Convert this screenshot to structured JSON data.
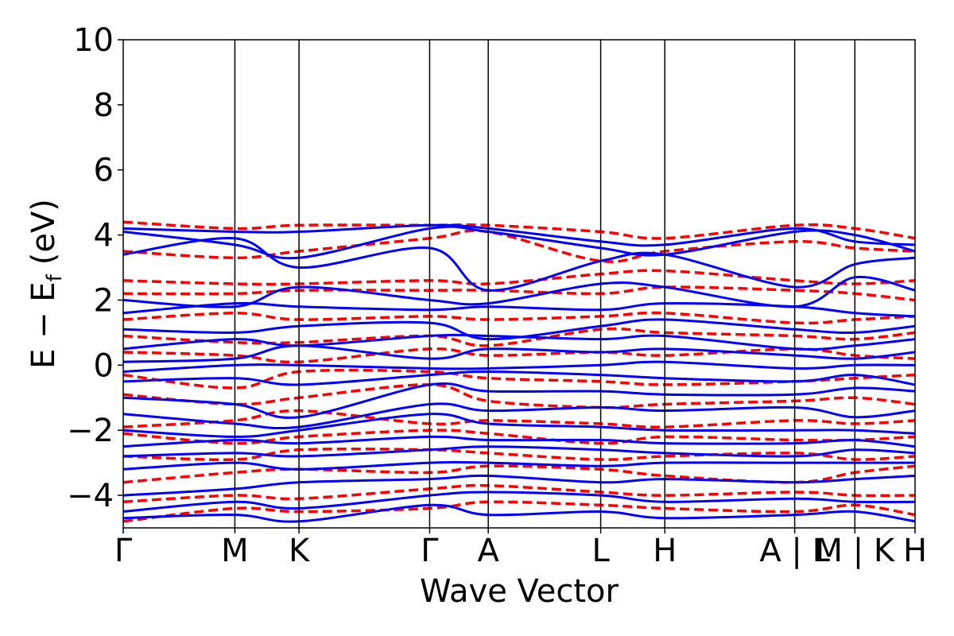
{
  "chart_data": {
    "type": "line",
    "title": "",
    "xlabel": "Wave Vector",
    "ylabel": "E − E",
    "ylabel_sub": "f",
    "ylabel_unit": "(eV)",
    "ylim": [
      -5,
      10
    ],
    "yticks": [
      {
        "value": -4,
        "label": "−4"
      },
      {
        "value": -2,
        "label": "−2"
      },
      {
        "value": 0,
        "label": "0"
      },
      {
        "value": 2,
        "label": "2"
      },
      {
        "value": 4,
        "label": "4"
      },
      {
        "value": 6,
        "label": "6"
      },
      {
        "value": 8,
        "label": "8"
      },
      {
        "value": 10,
        "label": "10"
      }
    ],
    "xlim": [
      0,
      10
    ],
    "kpath": [
      {
        "x": 0.0,
        "label": "Γ"
      },
      {
        "x": 1.41,
        "label": "M"
      },
      {
        "x": 2.22,
        "label": "K"
      },
      {
        "x": 3.87,
        "label": "Γ"
      },
      {
        "x": 4.61,
        "label": "A"
      },
      {
        "x": 6.03,
        "label": "L"
      },
      {
        "x": 6.84,
        "label": "H"
      },
      {
        "x": 8.48,
        "label": "A | L"
      },
      {
        "x": 9.24,
        "label": "M | K"
      },
      {
        "x": 10.0,
        "label": "H"
      }
    ],
    "grid": false,
    "legend": "none",
    "series": [
      {
        "style": "solid",
        "color": "#0000ff"
      },
      {
        "style": "dashed",
        "color": "#ff0000"
      }
    ],
    "bands_sampled": {
      "x": [
        0,
        1.41,
        2.22,
        3.87,
        4.61,
        6.03,
        6.84,
        8.48,
        9.24,
        10.0
      ],
      "blue": [
        [
          4.2,
          4.1,
          4.1,
          4.3,
          4.2,
          3.8,
          3.7,
          4.2,
          3.8,
          3.7
        ],
        [
          4.1,
          3.7,
          3.3,
          4.2,
          4.1,
          3.6,
          3.4,
          4.1,
          4.0,
          3.5
        ],
        [
          3.4,
          3.9,
          3.0,
          3.6,
          2.3,
          3.2,
          3.4,
          2.4,
          3.1,
          3.3
        ],
        [
          2.0,
          1.8,
          2.4,
          2.0,
          1.9,
          2.5,
          2.4,
          1.8,
          2.7,
          2.3
        ],
        [
          1.6,
          1.9,
          1.8,
          1.7,
          1.8,
          1.7,
          1.9,
          1.8,
          1.6,
          1.5
        ],
        [
          1.1,
          1.0,
          1.2,
          1.3,
          0.8,
          1.2,
          1.4,
          1.1,
          1.0,
          1.2
        ],
        [
          0.5,
          0.8,
          0.6,
          0.9,
          0.9,
          0.8,
          0.9,
          0.5,
          0.6,
          0.8
        ],
        [
          0.1,
          0.2,
          0.6,
          0.2,
          0.5,
          0.4,
          0.5,
          0.3,
          0.2,
          0.4
        ],
        [
          -0.2,
          0.0,
          0.0,
          -0.1,
          -0.1,
          0.0,
          0.1,
          -0.1,
          0.0,
          0.0
        ],
        [
          -0.5,
          -0.4,
          -0.6,
          -0.3,
          -0.2,
          -0.3,
          -0.4,
          -0.5,
          -0.3,
          -0.6
        ],
        [
          -1.0,
          -1.2,
          -1.6,
          -0.6,
          -0.8,
          -0.8,
          -0.9,
          -0.9,
          -0.7,
          -0.8
        ],
        [
          -1.5,
          -1.8,
          -1.9,
          -1.2,
          -1.4,
          -1.3,
          -1.4,
          -1.3,
          -1.6,
          -1.4
        ],
        [
          -2.0,
          -2.2,
          -2.0,
          -1.5,
          -1.8,
          -1.9,
          -2.0,
          -2.0,
          -2.0,
          -2.1
        ],
        [
          -2.5,
          -2.3,
          -2.4,
          -2.2,
          -2.3,
          -2.3,
          -2.4,
          -2.4,
          -2.3,
          -2.5
        ],
        [
          -2.8,
          -2.7,
          -2.8,
          -2.6,
          -2.5,
          -2.6,
          -2.7,
          -2.8,
          -2.6,
          -2.7
        ],
        [
          -3.2,
          -3.0,
          -3.2,
          -3.0,
          -3.0,
          -3.1,
          -3.0,
          -3.0,
          -3.0,
          -3.0
        ],
        [
          -4.0,
          -3.8,
          -3.6,
          -3.5,
          -3.4,
          -3.6,
          -3.5,
          -3.6,
          -3.5,
          -3.4
        ],
        [
          -4.5,
          -4.2,
          -4.4,
          -4.0,
          -3.9,
          -4.0,
          -4.2,
          -4.1,
          -4.2,
          -4.2
        ],
        [
          -4.7,
          -4.6,
          -4.8,
          -4.3,
          -4.6,
          -4.5,
          -4.7,
          -4.6,
          -4.5,
          -4.8
        ]
      ],
      "red": [
        [
          4.4,
          4.2,
          4.3,
          4.3,
          4.3,
          4.1,
          3.9,
          4.3,
          4.2,
          3.9
        ],
        [
          3.5,
          3.3,
          3.5,
          3.9,
          4.1,
          3.2,
          3.5,
          3.8,
          3.6,
          3.5
        ],
        [
          2.6,
          2.5,
          2.5,
          2.6,
          2.5,
          2.8,
          2.9,
          2.6,
          2.5,
          2.6
        ],
        [
          2.2,
          2.2,
          2.3,
          2.3,
          2.3,
          2.2,
          2.4,
          2.3,
          2.2,
          2.0
        ],
        [
          1.4,
          1.6,
          1.4,
          1.5,
          1.4,
          1.5,
          1.6,
          1.3,
          1.4,
          1.5
        ],
        [
          0.9,
          0.7,
          0.7,
          0.9,
          0.6,
          1.1,
          1.0,
          0.9,
          0.8,
          1.0
        ],
        [
          0.4,
          0.3,
          0.1,
          0.5,
          0.3,
          0.4,
          0.3,
          0.5,
          0.3,
          0.2
        ],
        [
          -0.3,
          -0.7,
          -0.2,
          -0.2,
          -0.4,
          -0.5,
          -0.6,
          -0.5,
          -0.4,
          -0.3
        ],
        [
          -0.9,
          -1.2,
          -1.0,
          -0.6,
          -1.1,
          -1.3,
          -1.2,
          -1.1,
          -1.0,
          -1.2
        ],
        [
          -1.9,
          -1.7,
          -1.4,
          -1.8,
          -1.7,
          -1.8,
          -1.9,
          -1.7,
          -1.8,
          -1.7
        ],
        [
          -2.1,
          -2.4,
          -2.2,
          -2.0,
          -2.1,
          -2.4,
          -2.2,
          -2.3,
          -2.3,
          -2.2
        ],
        [
          -2.8,
          -2.9,
          -2.6,
          -2.6,
          -2.7,
          -2.9,
          -2.8,
          -2.7,
          -2.9,
          -2.8
        ],
        [
          -3.6,
          -3.3,
          -3.2,
          -3.3,
          -3.1,
          -3.2,
          -3.4,
          -3.6,
          -3.3,
          -3.1
        ],
        [
          -4.2,
          -4.0,
          -4.1,
          -3.8,
          -3.7,
          -3.9,
          -4.0,
          -3.9,
          -4.0,
          -4.0
        ],
        [
          -4.8,
          -4.4,
          -4.5,
          -4.4,
          -4.2,
          -4.3,
          -4.4,
          -4.5,
          -4.3,
          -4.6
        ]
      ]
    }
  }
}
